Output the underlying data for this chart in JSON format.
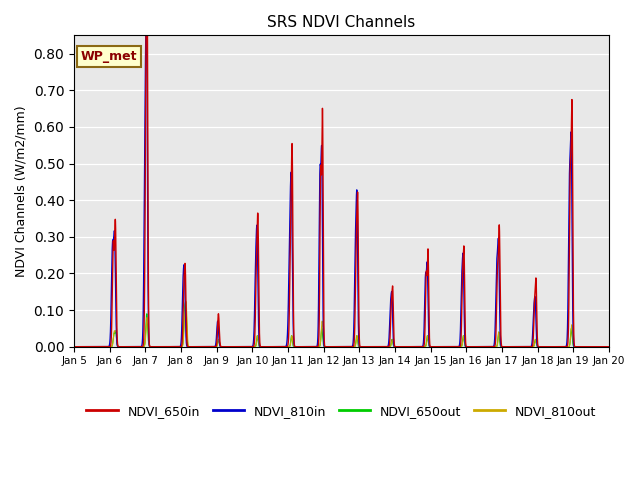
{
  "title": "SRS NDVI Channels",
  "ylabel": "NDVI Channels (W/m2/mm)",
  "ylim": [
    0.0,
    0.85
  ],
  "yticks": [
    0.0,
    0.1,
    0.2,
    0.3,
    0.4,
    0.5,
    0.6,
    0.7,
    0.8
  ],
  "colors": {
    "NDVI_650in": "#cc0000",
    "NDVI_810in": "#0000cc",
    "NDVI_650out": "#00cc00",
    "NDVI_810out": "#ccaa00"
  },
  "bg_color": "#e8e8e8",
  "annotation_text": "WP_met",
  "annotation_color": "#8b0000",
  "annotation_bg": "#ffffcc",
  "annotation_border": "#8b6914"
}
